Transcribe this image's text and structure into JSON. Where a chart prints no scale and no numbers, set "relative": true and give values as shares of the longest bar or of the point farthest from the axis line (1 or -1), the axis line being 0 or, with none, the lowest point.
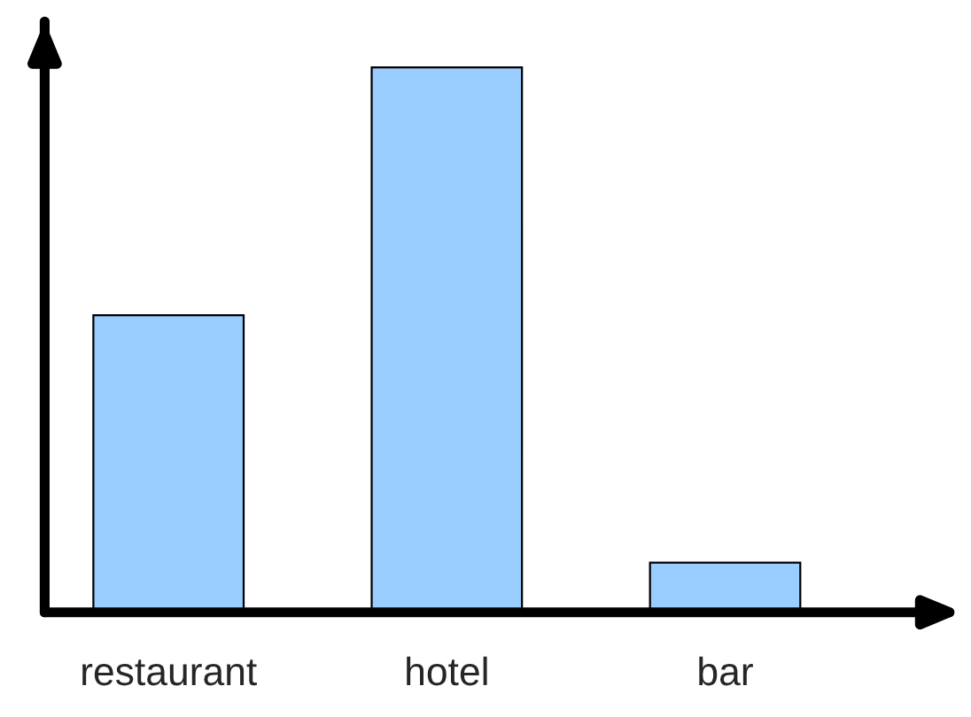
{
  "chart_data": {
    "type": "bar",
    "relative": true,
    "categories": [
      "restaurant",
      "hotel",
      "bar"
    ],
    "values": [
      0.545,
      1,
      0.091
    ],
    "color": "#99ccff",
    "grid": false,
    "legend": false
  }
}
